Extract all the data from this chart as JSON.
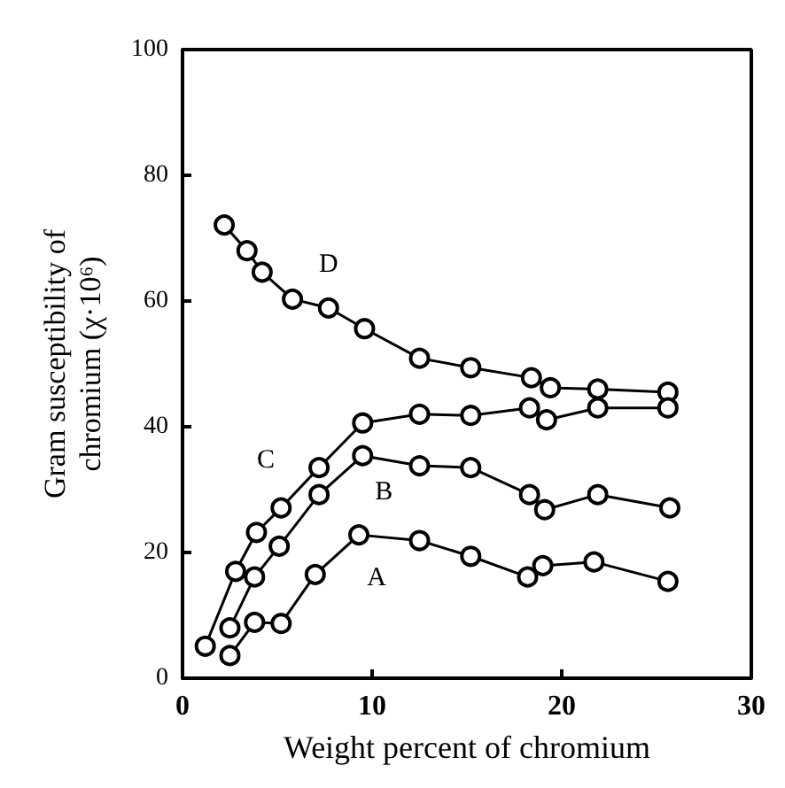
{
  "chart_data": {
    "type": "line",
    "xlabel": "Weight percent of chromium",
    "ylabel": "Gram susceptibility of\nchromium (χ·10⁶)",
    "xlim": [
      0,
      30
    ],
    "ylim": [
      0,
      100
    ],
    "xticks": [
      0,
      10,
      20,
      30
    ],
    "yticks": [
      0,
      20,
      40,
      60,
      80,
      100
    ],
    "grid": false,
    "legend": false,
    "marker": "circle",
    "line_style": "solid",
    "series": [
      {
        "name": "D",
        "color": "#000000",
        "x": [
          2.2,
          3.4,
          4.2,
          5.8,
          7.7,
          9.6,
          12.5,
          15.2,
          18.4,
          19.4,
          21.9,
          25.6
        ],
        "values": [
          72.1,
          68.0,
          64.6,
          60.3,
          58.9,
          55.6,
          50.9,
          49.4,
          47.8,
          46.2,
          46.0,
          45.5
        ]
      },
      {
        "name": "C",
        "color": "#000000",
        "x": [
          1.2,
          2.8,
          3.9,
          5.2,
          7.2,
          9.5,
          12.5,
          15.2,
          18.3,
          19.2,
          21.9,
          25.6
        ],
        "values": [
          5.1,
          17.0,
          23.2,
          27.1,
          33.5,
          40.6,
          42.0,
          41.8,
          43.0,
          41.1,
          43.0,
          43.0
        ]
      },
      {
        "name": "B",
        "color": "#000000",
        "x": [
          2.5,
          3.8,
          5.1,
          7.2,
          9.5,
          12.5,
          15.2,
          18.3,
          19.1,
          21.9,
          25.7
        ],
        "values": [
          8.0,
          16.1,
          21.0,
          29.2,
          35.4,
          33.8,
          33.5,
          29.2,
          26.8,
          29.2,
          27.1
        ]
      },
      {
        "name": "A",
        "color": "#000000",
        "x": [
          2.5,
          3.8,
          5.2,
          7.0,
          9.3,
          12.5,
          15.2,
          18.2,
          19.0,
          21.7,
          25.6
        ],
        "values": [
          3.6,
          8.9,
          8.7,
          16.5,
          22.8,
          21.9,
          19.4,
          16.1,
          17.9,
          18.5,
          15.4
        ]
      }
    ]
  }
}
